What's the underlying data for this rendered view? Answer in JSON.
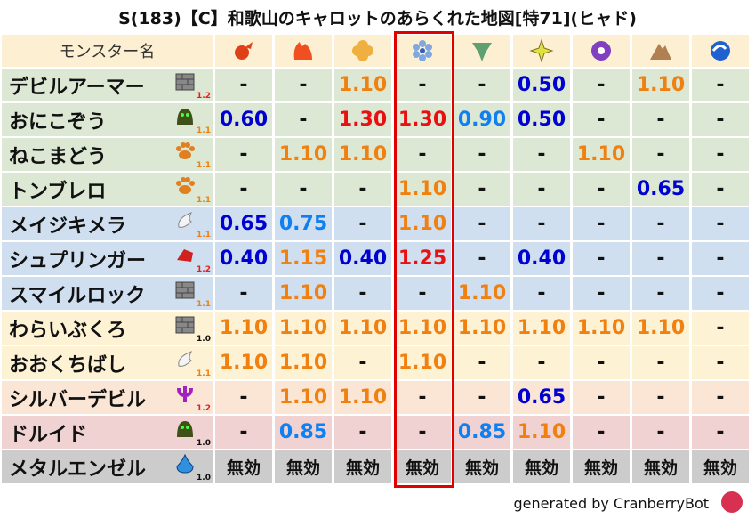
{
  "title": "S(183)【C】和歌山のキャロットのあらくれた地図[特71](ヒャド)",
  "header": {
    "name_label": "モンスター名",
    "elements": [
      {
        "icon": "fire-ball-icon",
        "color": "#e04018"
      },
      {
        "icon": "flame-icon",
        "color": "#f05020"
      },
      {
        "icon": "clover-icon",
        "color": "#f0b040"
      },
      {
        "icon": "ice-flower-icon",
        "color": "#80a8e0"
      },
      {
        "icon": "tornado-icon",
        "color": "#60a070"
      },
      {
        "icon": "light-star-icon",
        "color": "#e0e040"
      },
      {
        "icon": "dark-swirl-icon",
        "color": "#8040c0"
      },
      {
        "icon": "mountain-icon",
        "color": "#b08050"
      },
      {
        "icon": "wave-icon",
        "color": "#2060d0"
      }
    ]
  },
  "highlight_column": 3,
  "colors": {
    "high": "#e81010",
    "mid": "#f08010",
    "low": "#0000d0",
    "lowmid": "#1080f0",
    "neutral": "#111111"
  },
  "rows": [
    {
      "name": "デビルアーマー",
      "type_icon": "wall-icon",
      "level": "1.2",
      "level_color": "#e02020",
      "bg": "#dce8d4",
      "values": [
        "-",
        "-",
        "1.10",
        "-",
        "-",
        "0.50",
        "-",
        "1.10",
        "-"
      ]
    },
    {
      "name": "おにこぞう",
      "type_icon": "ghost-icon",
      "level": "1.1",
      "level_color": "#f08010",
      "bg": "#dce8d4",
      "values": [
        "0.60",
        "-",
        "1.30",
        "1.30",
        "0.90",
        "0.50",
        "-",
        "-",
        "-"
      ]
    },
    {
      "name": "ねこまどう",
      "type_icon": "paw-icon",
      "level": "1.1",
      "level_color": "#f08010",
      "bg": "#dce8d4",
      "values": [
        "-",
        "1.10",
        "1.10",
        "-",
        "-",
        "-",
        "1.10",
        "-",
        "-"
      ]
    },
    {
      "name": "トンブレロ",
      "type_icon": "paw-icon",
      "level": "1.1",
      "level_color": "#f08010",
      "bg": "#dce8d4",
      "values": [
        "-",
        "-",
        "-",
        "1.10",
        "-",
        "-",
        "-",
        "0.65",
        "-"
      ]
    },
    {
      "name": "メイジキメラ",
      "type_icon": "wing-icon",
      "level": "1.1",
      "level_color": "#f08010",
      "bg": "#d0dff0",
      "values": [
        "0.65",
        "0.75",
        "-",
        "1.10",
        "-",
        "-",
        "-",
        "-",
        "-"
      ]
    },
    {
      "name": "シュプリンガー",
      "type_icon": "dragon-icon",
      "level": "1.2",
      "level_color": "#e02020",
      "bg": "#d0dff0",
      "values": [
        "0.40",
        "1.15",
        "0.40",
        "1.25",
        "-",
        "0.40",
        "-",
        "-",
        "-"
      ]
    },
    {
      "name": "スマイルロック",
      "type_icon": "wall-icon",
      "level": "1.1",
      "level_color": "#f08010",
      "bg": "#d0dff0",
      "values": [
        "-",
        "1.10",
        "-",
        "-",
        "1.10",
        "-",
        "-",
        "-",
        "-"
      ]
    },
    {
      "name": "わらいぶくろ",
      "type_icon": "wall-icon",
      "level": "1.0",
      "level_color": "#111111",
      "bg": "#fdf2d4",
      "values": [
        "1.10",
        "1.10",
        "1.10",
        "1.10",
        "1.10",
        "1.10",
        "1.10",
        "1.10",
        "-"
      ]
    },
    {
      "name": "おおくちばし",
      "type_icon": "wing-icon",
      "level": "1.1",
      "level_color": "#f08010",
      "bg": "#fdf2d4",
      "values": [
        "1.10",
        "1.10",
        "-",
        "1.10",
        "-",
        "-",
        "-",
        "-",
        "-"
      ]
    },
    {
      "name": "シルバーデビル",
      "type_icon": "trident-icon",
      "level": "1.2",
      "level_color": "#e02020",
      "bg": "#fbe6d6",
      "values": [
        "-",
        "1.10",
        "1.10",
        "-",
        "-",
        "0.65",
        "-",
        "-",
        "-"
      ]
    },
    {
      "name": "ドルイド",
      "type_icon": "ghost-icon",
      "level": "1.0",
      "level_color": "#111111",
      "bg": "#f0d2d2",
      "values": [
        "-",
        "0.85",
        "-",
        "-",
        "0.85",
        "1.10",
        "-",
        "-",
        "-"
      ]
    },
    {
      "name": "メタルエンゼル",
      "type_icon": "slime-icon",
      "level": "1.0",
      "level_color": "#111111",
      "bg": "#cccccc",
      "values": [
        "無効",
        "無効",
        "無効",
        "無効",
        "無効",
        "無効",
        "無効",
        "無効",
        "無効"
      ]
    }
  ],
  "footer": {
    "text": "generated by CranberryBot",
    "icon": "cranberry-bot-icon"
  }
}
